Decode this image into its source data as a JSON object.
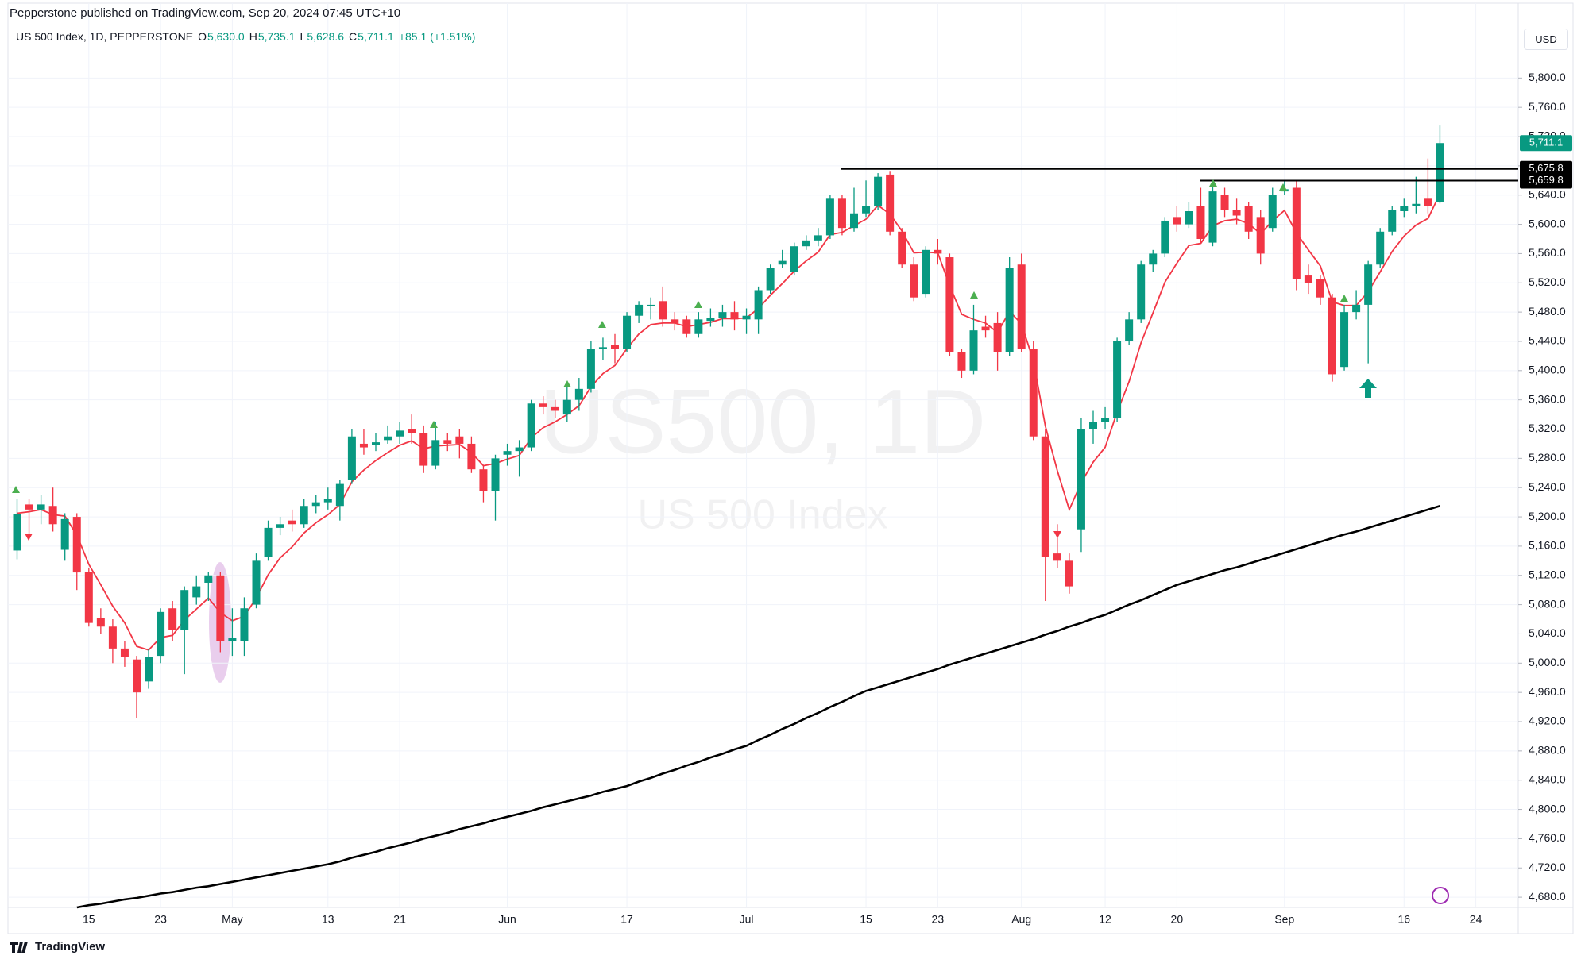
{
  "header": {
    "published": "Pepperstone published on TradingView.com, Sep 20, 2024 07:45 UTC+10",
    "symbol": "US 500 Index, 1D, PEPPERSTONE",
    "ohlc": [
      {
        "key": "O",
        "value": "5,630.0"
      },
      {
        "key": "H",
        "value": "5,735.1"
      },
      {
        "key": "L",
        "value": "5,628.6"
      },
      {
        "key": "C",
        "value": "5,711.1"
      }
    ],
    "change": "+85.1 (+1.51%)"
  },
  "currency": "USD",
  "watermark": {
    "symbol": "US500, 1D",
    "name": "US 500 Index"
  },
  "footer": {
    "brand": "TradingView"
  },
  "chart_data": {
    "type": "candlestick",
    "categories": [
      null,
      null,
      null,
      null,
      null,
      null,
      "15",
      null,
      null,
      null,
      null,
      null,
      "23",
      null,
      null,
      null,
      null,
      null,
      "May",
      null,
      null,
      null,
      null,
      null,
      null,
      null,
      "13",
      null,
      null,
      null,
      null,
      null,
      "21",
      null,
      null,
      null,
      null,
      null,
      null,
      null,
      null,
      "Jun",
      null,
      null,
      null,
      null,
      null,
      null,
      null,
      null,
      null,
      "17",
      null,
      null,
      null,
      null,
      null,
      null,
      null,
      null,
      null,
      "Jul",
      null,
      null,
      null,
      null,
      null,
      null,
      null,
      null,
      null,
      "15",
      null,
      null,
      null,
      null,
      null,
      "23",
      null,
      null,
      null,
      null,
      null,
      null,
      "Aug",
      null,
      null,
      null,
      null,
      null,
      null,
      "12",
      null,
      null,
      null,
      null,
      null,
      "20",
      null,
      null,
      null,
      null,
      null,
      null,
      null,
      null,
      "Sep",
      null,
      null,
      null,
      null,
      null,
      null,
      null,
      null,
      null,
      "16",
      null,
      null,
      null,
      null,
      null,
      "24",
      null,
      null,
      null
    ],
    "open": [
      5154,
      5217,
      5210,
      5215,
      5155,
      5200,
      5125,
      5062,
      5050,
      5020,
      5005,
      4975,
      5010,
      5075,
      5045,
      5090,
      5110,
      5120,
      5030,
      5030,
      5080,
      5145,
      5185,
      5195,
      5190,
      5215,
      5220,
      5215,
      5250,
      5300,
      5298,
      5305,
      5310,
      5320,
      5315,
      5270,
      5305,
      5310,
      5300,
      5265,
      5235,
      5285,
      5290,
      5295,
      5355,
      5350,
      5340,
      5360,
      5375,
      5430,
      5435,
      5430,
      5475,
      5488,
      5495,
      5470,
      5470,
      5450,
      5468,
      5472,
      5480,
      5470,
      5470,
      5510,
      5545,
      5535,
      5570,
      5578,
      5585,
      5635,
      5595,
      5615,
      5625,
      5668,
      5590,
      5545,
      5505,
      5565,
      5555,
      5425,
      5400,
      5460,
      5465,
      5425,
      5545,
      5430,
      5310,
      5150,
      5140,
      5183,
      5320,
      5330,
      5335,
      5440,
      5470,
      5545,
      5560,
      5610,
      5600,
      5625,
      5575,
      5640,
      5620,
      5625,
      5610,
      5595,
      5645,
      5650,
      5530,
      5525,
      5500,
      5405,
      5480,
      5490,
      5545,
      5590,
      5618,
      5625,
      5635,
      5630.0,
      null,
      null,
      null,
      null,
      null,
      null
    ],
    "high": [
      5224,
      5224,
      5230,
      5240,
      5205,
      5205,
      5130,
      5075,
      5060,
      5030,
      5010,
      5020,
      5075,
      5085,
      5105,
      5120,
      5125,
      5125,
      5075,
      5090,
      5150,
      5195,
      5200,
      5210,
      5225,
      5230,
      5240,
      5250,
      5320,
      5320,
      5315,
      5325,
      5330,
      5340,
      5325,
      5330,
      5315,
      5320,
      5310,
      5270,
      5285,
      5300,
      5305,
      5360,
      5365,
      5360,
      5380,
      5390,
      5440,
      5445,
      5450,
      5480,
      5495,
      5500,
      5515,
      5480,
      5475,
      5480,
      5485,
      5490,
      5495,
      5485,
      5515,
      5545,
      5565,
      5575,
      5585,
      5595,
      5640,
      5640,
      5650,
      5660,
      5670,
      5672,
      5595,
      5555,
      5570,
      5580,
      5560,
      5430,
      5490,
      5475,
      5480,
      5555,
      5560,
      5440,
      5320,
      5190,
      5150,
      5335,
      5345,
      5350,
      5445,
      5480,
      5550,
      5565,
      5610,
      5625,
      5630,
      5650,
      5655,
      5650,
      5635,
      5630,
      5620,
      5650,
      5660,
      5660,
      5545,
      5530,
      5505,
      5490,
      5510,
      5550,
      5595,
      5625,
      5635,
      5665,
      5690,
      5735.1,
      null,
      null,
      null,
      null,
      null,
      null
    ],
    "low": [
      5142,
      5176,
      5190,
      5180,
      5140,
      5100,
      5050,
      5040,
      5000,
      4995,
      4925,
      4965,
      5000,
      5030,
      4985,
      5080,
      5085,
      5015,
      5010,
      5010,
      5075,
      5140,
      5175,
      5180,
      5185,
      5205,
      5210,
      5195,
      5245,
      5285,
      5290,
      5300,
      5300,
      5300,
      5260,
      5265,
      5290,
      5280,
      5260,
      5220,
      5195,
      5270,
      5255,
      5290,
      5340,
      5335,
      5330,
      5345,
      5370,
      5415,
      5410,
      5425,
      5465,
      5470,
      5460,
      5455,
      5445,
      5445,
      5460,
      5460,
      5455,
      5450,
      5450,
      5505,
      5540,
      5530,
      5565,
      5570,
      5580,
      5585,
      5590,
      5610,
      5620,
      5585,
      5540,
      5495,
      5500,
      5545,
      5420,
      5390,
      5395,
      5445,
      5400,
      5420,
      5425,
      5305,
      5085,
      5130,
      5095,
      5152,
      5300,
      5320,
      5330,
      5435,
      5465,
      5535,
      5555,
      5590,
      5595,
      5575,
      5570,
      5610,
      5600,
      5580,
      5545,
      5590,
      5640,
      5510,
      5505,
      5490,
      5385,
      5400,
      5470,
      5410,
      5540,
      5585,
      5610,
      5615,
      5615,
      5628.6,
      null,
      null,
      null,
      null,
      null,
      null
    ],
    "close": [
      5204,
      5210,
      5217,
      5190,
      5197,
      5124,
      5055,
      5050,
      5020,
      5008,
      4960,
      5008,
      5070,
      5045,
      5100,
      5105,
      5120,
      5030,
      5035,
      5075,
      5140,
      5185,
      5190,
      5190,
      5215,
      5220,
      5225,
      5245,
      5310,
      5295,
      5302,
      5310,
      5318,
      5315,
      5270,
      5305,
      5300,
      5300,
      5265,
      5235,
      5280,
      5290,
      5295,
      5355,
      5350,
      5345,
      5360,
      5375,
      5430,
      5432,
      5430,
      5475,
      5490,
      5490,
      5470,
      5465,
      5450,
      5470,
      5472,
      5480,
      5470,
      5475,
      5510,
      5540,
      5550,
      5570,
      5578,
      5585,
      5635,
      5595,
      5615,
      5625,
      5665,
      5590,
      5545,
      5500,
      5565,
      5560,
      5425,
      5400,
      5455,
      5455,
      5425,
      5540,
      5430,
      5310,
      5145,
      5140,
      5105,
      5320,
      5330,
      5335,
      5440,
      5470,
      5545,
      5560,
      5605,
      5600,
      5618,
      5580,
      5645,
      5620,
      5612,
      5590,
      5560,
      5640,
      5648,
      5525,
      5520,
      5500,
      5395,
      5480,
      5490,
      5545,
      5590,
      5620,
      5625,
      5628,
      5625,
      5711.1,
      null,
      null,
      null,
      null,
      null,
      null
    ],
    "close_label": "5,711.1",
    "up_color": "#089981",
    "down_color": "#f23645",
    "lines": [
      {
        "color": "#f23645",
        "values": [
          5205,
          5207,
          5210,
          5203,
          5201,
          5175,
          5135,
          5107,
          5078,
          5055,
          5023,
          5018,
          5035,
          5038,
          5059,
          5074,
          5089,
          5069,
          5058,
          5064,
          5089,
          5121,
          5144,
          5159,
          5178,
          5192,
          5203,
          5217,
          5248,
          5264,
          5277,
          5288,
          5298,
          5304,
          5293,
          5297,
          5298,
          5299,
          5288,
          5270,
          5273,
          5279,
          5284,
          5308,
          5322,
          5330,
          5340,
          5352,
          5378,
          5396,
          5407,
          5430,
          5450,
          5463,
          5465,
          5465,
          5460,
          5463,
          5466,
          5471,
          5471,
          5472,
          5485,
          5503,
          5519,
          5536,
          5550,
          5562,
          5586,
          5589,
          5598,
          5607,
          5626,
          5614,
          5591,
          5561,
          5562,
          5561,
          5516,
          5477,
          5470,
          5465,
          5452,
          5481,
          5464,
          5413,
          5324,
          5263,
          5210,
          5247,
          5275,
          5295,
          5343,
          5385,
          5438,
          5479,
          5521,
          5547,
          5571,
          5574,
          5598,
          5605,
          5607,
          5601,
          5587,
          5605,
          5619,
          5588,
          5565,
          5543,
          5494,
          5489,
          5489,
          5508,
          5535,
          5563,
          5584,
          5599,
          5608,
          5642,
          null,
          null,
          null,
          null,
          null,
          null
        ]
      },
      {
        "color": "#000000",
        "values": [
          null,
          null,
          null,
          null,
          null,
          4666,
          4669,
          4671,
          4674,
          4677,
          4679,
          4682,
          4685,
          4687,
          4690,
          4693,
          4695,
          4698,
          4701,
          4704,
          4707,
          4710,
          4713,
          4716,
          4719,
          4722,
          4725,
          4729,
          4734,
          4738,
          4742,
          4747,
          4751,
          4755,
          4760,
          4764,
          4768,
          4773,
          4777,
          4781,
          4786,
          4790,
          4794,
          4798,
          4803,
          4807,
          4811,
          4815,
          4819,
          4824,
          4828,
          4832,
          4838,
          4843,
          4849,
          4854,
          4860,
          4865,
          4871,
          4876,
          4882,
          4887,
          4895,
          4902,
          4910,
          4917,
          4925,
          4932,
          4940,
          4947,
          4955,
          4962,
          4967,
          4972,
          4977,
          4982,
          4987,
          4992,
          4998,
          5003,
          5008,
          5013,
          5018,
          5023,
          5028,
          5033,
          5039,
          5044,
          5050,
          5055,
          5061,
          5066,
          5073,
          5080,
          5086,
          5093,
          5100,
          5107,
          5112,
          5117,
          5122,
          5127,
          5131,
          5136,
          5141,
          5146,
          5151,
          5156,
          5161,
          5166,
          5171,
          5176,
          5180,
          5185,
          5190,
          5195,
          5200,
          5205,
          5210,
          5215,
          null,
          null,
          null,
          null,
          null,
          null
        ]
      }
    ],
    "levels": [
      {
        "value": 5675.8,
        "label": "5,675.8"
      },
      {
        "value": 5659.8,
        "label": "5,659.8"
      }
    ],
    "ylim": [
      4666,
      5872
    ],
    "yticks": [
      {
        "value": 4680,
        "label": "4,680.0"
      },
      {
        "value": 4720,
        "label": "4,720.0"
      },
      {
        "value": 4760,
        "label": "4,760.0"
      },
      {
        "value": 4800,
        "label": "4,800.0"
      },
      {
        "value": 4840,
        "label": "4,840.0"
      },
      {
        "value": 4880,
        "label": "4,880.0"
      },
      {
        "value": 4920,
        "label": "4,920.0"
      },
      {
        "value": 4960,
        "label": "4,960.0"
      },
      {
        "value": 5000,
        "label": "5,000.0"
      },
      {
        "value": 5040,
        "label": "5,040.0"
      },
      {
        "value": 5080,
        "label": "5,080.0"
      },
      {
        "value": 5120,
        "label": "5,120.0"
      },
      {
        "value": 5160,
        "label": "5,160.0"
      },
      {
        "value": 5200,
        "label": "5,200.0"
      },
      {
        "value": 5240,
        "label": "5,240.0"
      },
      {
        "value": 5280,
        "label": "5,280.0"
      },
      {
        "value": 5320,
        "label": "5,320.0"
      },
      {
        "value": 5360,
        "label": "5,360.0"
      },
      {
        "value": 5400,
        "label": "5,400.0"
      },
      {
        "value": 5440,
        "label": "5,440.0"
      },
      {
        "value": 5480,
        "label": "5,480.0"
      },
      {
        "value": 5520,
        "label": "5,520.0"
      },
      {
        "value": 5560,
        "label": "5,560.0"
      },
      {
        "value": 5600,
        "label": "5,600.0"
      },
      {
        "value": 5640,
        "label": "5,640.0"
      },
      {
        "value": 5680,
        "label": "5,680.0"
      },
      {
        "value": 5720,
        "label": "5,720.0"
      },
      {
        "value": 5760,
        "label": "5,760.0"
      },
      {
        "value": 5800,
        "label": "5,800.0"
      }
    ],
    "grid": true
  }
}
